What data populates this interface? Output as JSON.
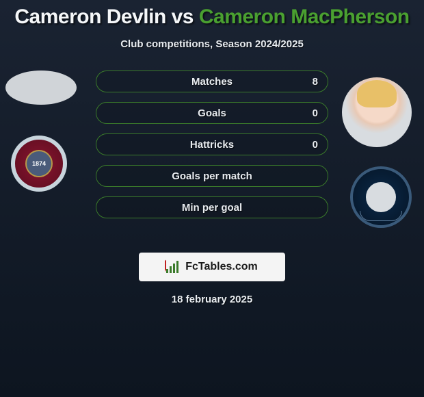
{
  "title": {
    "player1": "Cameron Devlin",
    "vs": "vs",
    "player2": "Cameron MacPherson",
    "player1_color": "#f5f7f9",
    "player2_color": "#4aa030"
  },
  "subtitle": "Club competitions, Season 2024/2025",
  "player_left": {
    "club_crest_year": "1874",
    "club_primary_color": "#8a1530",
    "club_ring_color": "#c8d4dc"
  },
  "player_right": {
    "club_primary_color": "#0a2a4a",
    "club_ring_color": "#3a5a7a"
  },
  "stats": [
    {
      "label": "Matches",
      "value": "8"
    },
    {
      "label": "Goals",
      "value": "0"
    },
    {
      "label": "Hattricks",
      "value": "0"
    },
    {
      "label": "Goals per match",
      "value": ""
    },
    {
      "label": "Min per goal",
      "value": ""
    }
  ],
  "stat_row_style": {
    "border_color": "#3a7a2a",
    "text_color": "#e8ecf0"
  },
  "branding": {
    "text": "FcTables.com",
    "background": "#f4f4f4"
  },
  "date": "18 february 2025"
}
